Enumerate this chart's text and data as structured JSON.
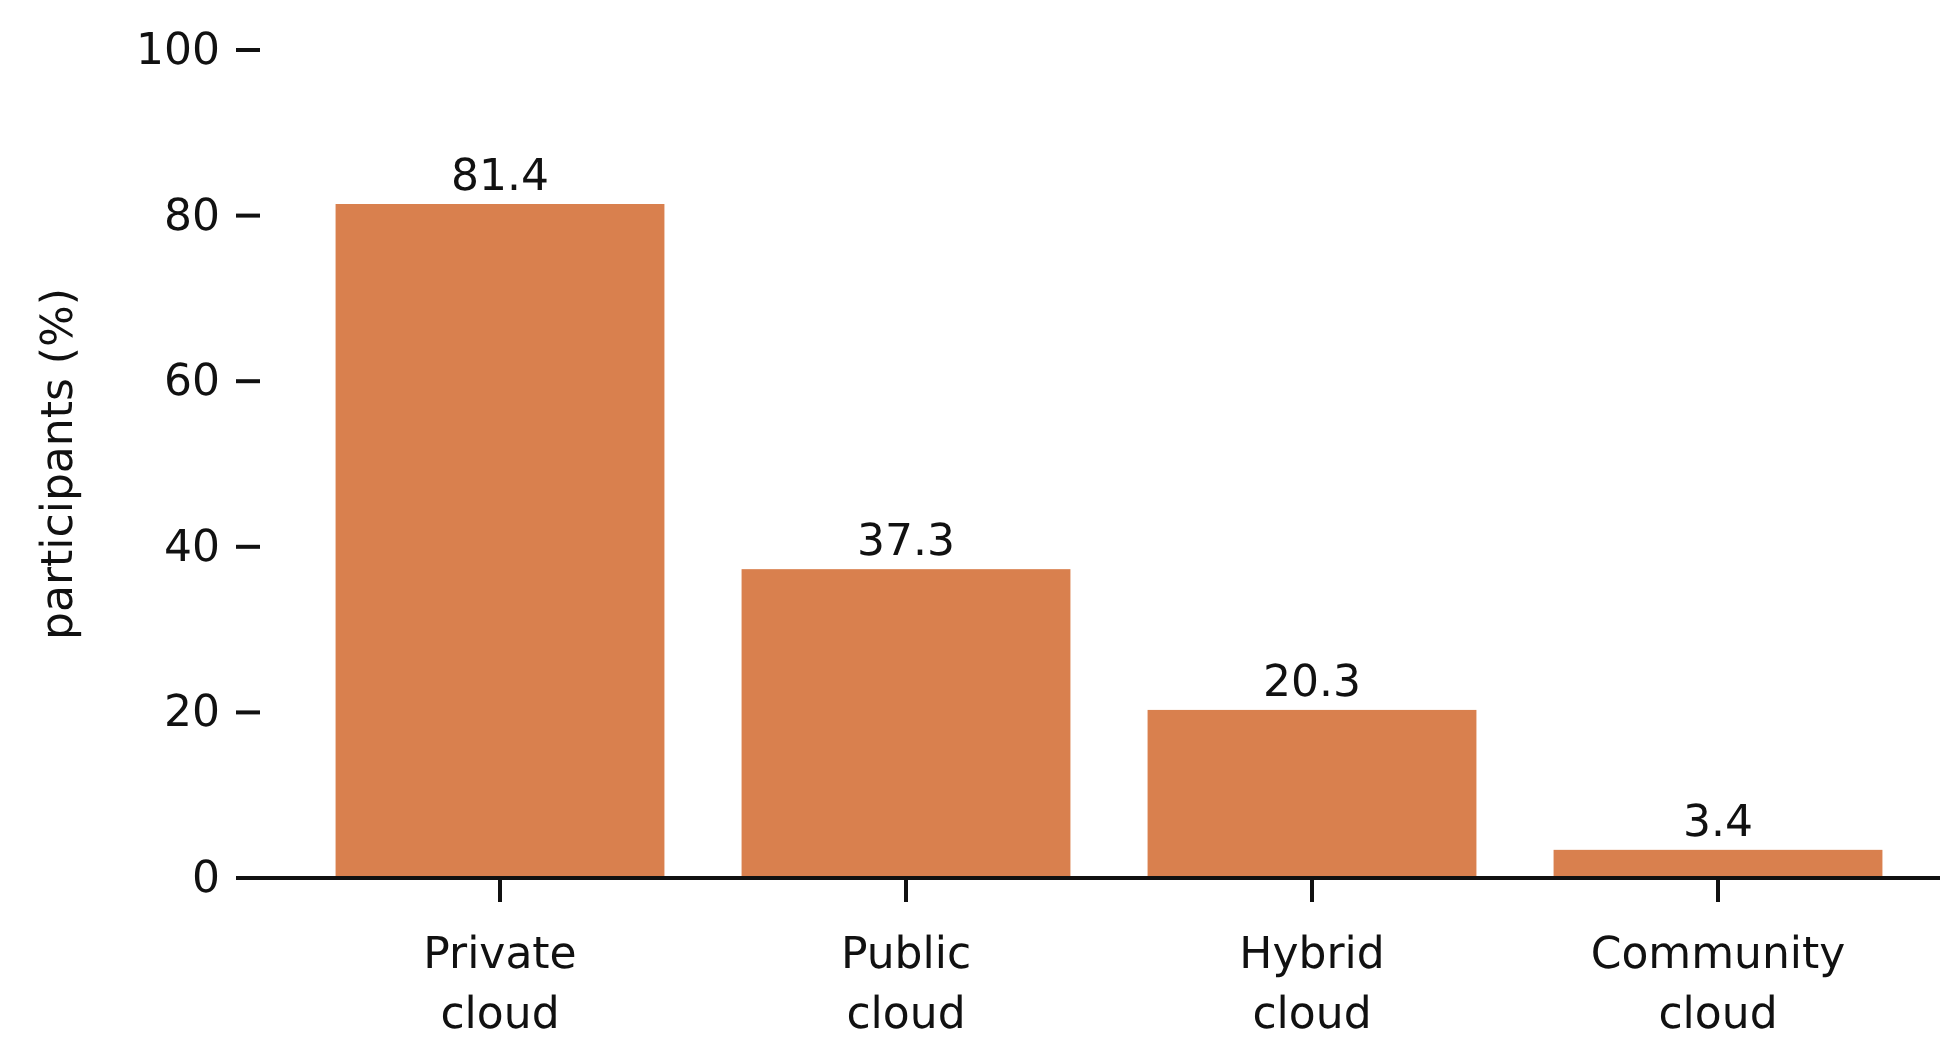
{
  "chart_data": {
    "type": "bar",
    "ylabel": "participants (%)",
    "categories": [
      "Private cloud",
      "Public cloud",
      "Hybrid cloud",
      "Community cloud"
    ],
    "values": [
      81.4,
      37.3,
      20.3,
      3.4
    ],
    "color": "#d9804e",
    "ylim": [
      0,
      100
    ],
    "yticks": [
      0,
      20,
      40,
      60,
      80,
      100
    ],
    "data_labels": true
  }
}
